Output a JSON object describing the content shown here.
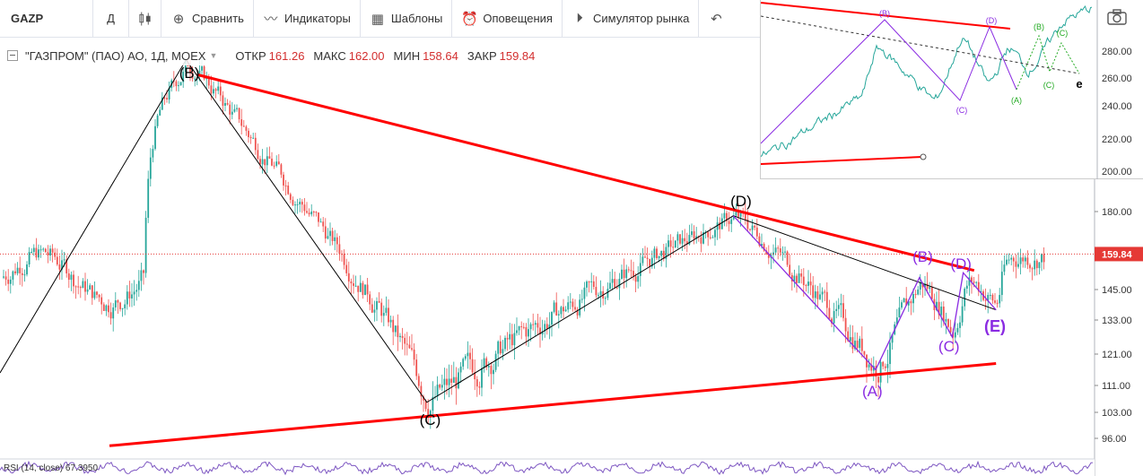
{
  "toolbar": {
    "symbol": "GAZP",
    "interval": "Д",
    "compare": "Сравнить",
    "indicators": "Индикаторы",
    "templates": "Шаблоны",
    "alerts": "Оповещения",
    "simulator": "Симулятор рынка",
    "icons": {
      "compare": "plus-circle-icon",
      "indicators": "wave-icon",
      "templates": "templates-icon",
      "alerts": "alarm-clock-icon",
      "simulator": "play-icon",
      "undo": "undo-icon",
      "camera": "camera-icon",
      "candle": "candlestick-icon"
    }
  },
  "legend": {
    "title": "\"ГАЗПРОМ\" (ПАО) АО, 1Д, MOEX",
    "open_label": "ОТКР",
    "open": "161.26",
    "high_label": "МАКС",
    "high": "162.00",
    "low_label": "МИН",
    "low": "158.64",
    "close_label": "ЗАКР",
    "close": "159.84"
  },
  "rsi_label": "RSI (14, close)  67.3950",
  "chart_data": {
    "type": "line",
    "title": "\"ГАЗПРОМ\" (ПАО) АО, 1Д, MOEX",
    "xlabel": "",
    "ylabel": "",
    "y_ticks": [
      "180.00",
      "160.00",
      "145.00",
      "133.00",
      "121.00",
      "111.00",
      "103.00",
      "96.00"
    ],
    "y_tick_values": [
      180,
      160,
      145,
      133,
      121,
      111,
      103,
      96
    ],
    "last_price": "159.84",
    "last_price_value": 159.84,
    "colors": {
      "candle_up": "#26a69a",
      "candle_down": "#ef5350",
      "trendline": "#ff0000",
      "wave_major": "#000000",
      "wave_minor": "#8a2be2",
      "price_line": "#e53935"
    },
    "series": [
      {
        "name": "",
        "x": [
          0,
          0.17,
          0.39,
          0.67,
          0.8,
          0.84,
          0.87,
          0.88,
          0.91
        ],
        "values": [
          115,
          252,
          106,
          178,
          116,
          150,
          127,
          152,
          137
        ]
      }
    ],
    "wave_labels": [
      "(B)",
      "(C)",
      "(D)",
      "(A)",
      "(B)",
      "(C)",
      "(D)",
      "(E)"
    ],
    "trendlines": [
      {
        "from": [
          0.18,
          245
        ],
        "to": [
          0.89,
          153
        ]
      },
      {
        "from": [
          0.1,
          94
        ],
        "to": [
          0.91,
          118
        ]
      }
    ],
    "inset": {
      "y_ticks": [
        "280.00",
        "260.00",
        "240.00",
        "220.00",
        "200.00"
      ],
      "y_tick_values": [
        280,
        260,
        240,
        220,
        200
      ],
      "labels": [
        "(B)",
        "(D)",
        "(B)",
        "(C)",
        "(C)",
        "(A)",
        "(C)",
        "e"
      ]
    }
  }
}
